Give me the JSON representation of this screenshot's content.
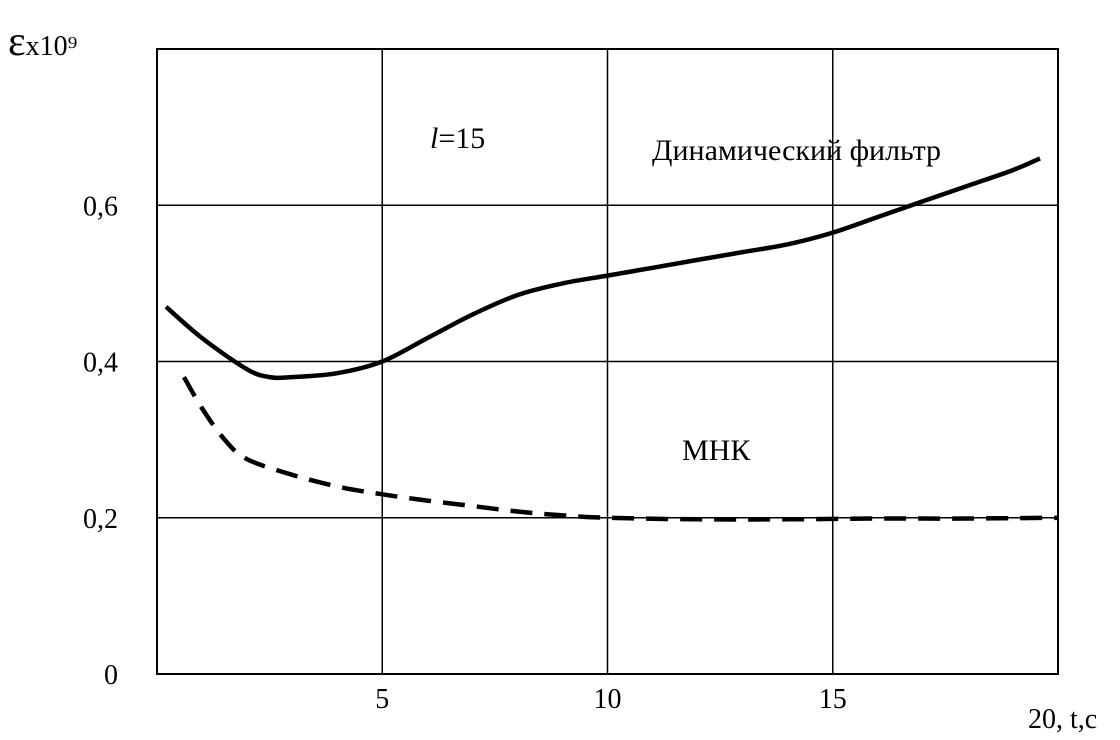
{
  "chart_data": {
    "type": "line",
    "ylabel_symbol": "ε",
    "ylabel_rest": "x10⁹",
    "xlabel": "20, t,c",
    "xlim": [
      0,
      20
    ],
    "ylim": [
      0,
      0.8
    ],
    "xticks": [
      {
        "value": 5,
        "label": "5"
      },
      {
        "value": 10,
        "label": "10"
      },
      {
        "value": 15,
        "label": "15"
      }
    ],
    "yticks": [
      {
        "value": 0,
        "label": "0"
      },
      {
        "value": 0.2,
        "label": "0,2"
      },
      {
        "value": 0.4,
        "label": "0,4"
      },
      {
        "value": 0.6,
        "label": "0,6"
      }
    ],
    "grid": true,
    "annotations": {
      "param_italic": "l",
      "param_rest": "=15"
    },
    "series": [
      {
        "name": "Динамический фильтр",
        "style": "solid",
        "x": [
          0.2,
          1.0,
          2.0,
          2.5,
          3.0,
          4.0,
          5.0,
          6.0,
          7.0,
          8.0,
          9.0,
          10.0,
          11.0,
          12.0,
          13.0,
          14.0,
          15.0,
          16.0,
          17.0,
          18.0,
          19.0,
          19.6
        ],
        "y": [
          0.47,
          0.43,
          0.39,
          0.38,
          0.38,
          0.385,
          0.4,
          0.43,
          0.46,
          0.485,
          0.5,
          0.51,
          0.52,
          0.53,
          0.54,
          0.55,
          0.565,
          0.585,
          0.605,
          0.625,
          0.645,
          0.66
        ]
      },
      {
        "name": "МНК",
        "style": "dashed",
        "x": [
          0.6,
          1.0,
          1.5,
          2.0,
          3.0,
          4.0,
          5.0,
          6.0,
          7.0,
          8.0,
          9.0,
          10.0,
          12.0,
          14.0,
          16.0,
          18.0,
          20.0
        ],
        "y": [
          0.38,
          0.34,
          0.3,
          0.275,
          0.255,
          0.24,
          0.23,
          0.222,
          0.215,
          0.208,
          0.203,
          0.2,
          0.198,
          0.198,
          0.199,
          0.199,
          0.2
        ]
      }
    ]
  }
}
